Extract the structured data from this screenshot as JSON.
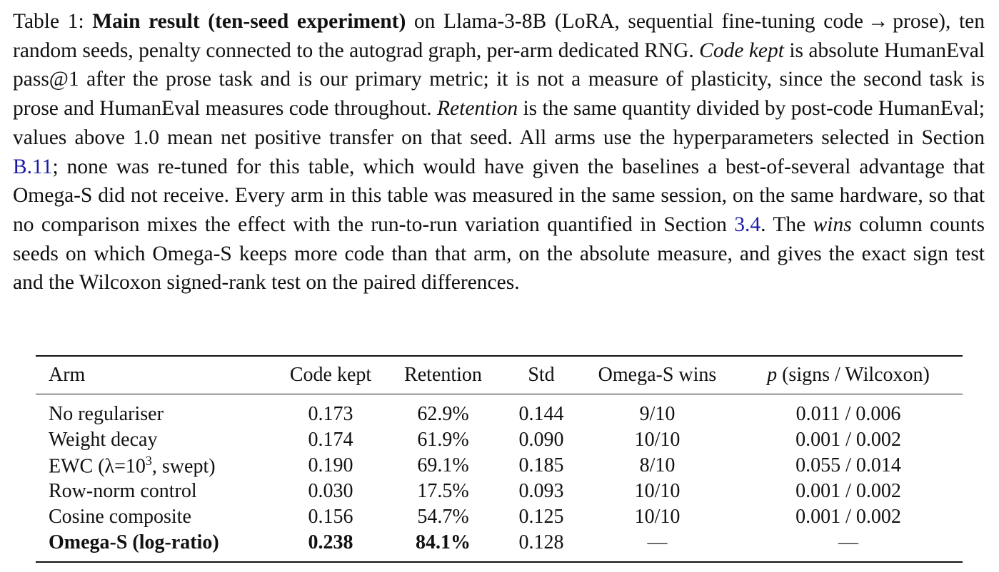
{
  "caption": {
    "label": "Table 1:",
    "title": "Main result (ten-seed experiment)",
    "t1": " on Llama-3-8B (LoRA, sequential fine-tuning code → prose), ten random seeds, penalty connected to the autograd graph, per-arm dedicated RNG. ",
    "i1": "Code kept",
    "t2": " is absolute HumanEval pass@1 after the prose task and is our primary metric; it is not a measure of plasticity, since the second task is prose and HumanEval measures code throughout. ",
    "i2": "Retention",
    "t3": " is the same quantity divided by post-code HumanEval; values above 1.0 mean net positive transfer on that seed. All arms use the hyperparameters selected in Section ",
    "ref1": "B.11",
    "t4": "; none was re-tuned for this table, which would have given the baselines a best-of-several advantage that Omega-S did not receive. Every arm in this table was measured in the same session, on the same hardware, so that no comparison mixes the effect with the run-to-run variation quantified in Section ",
    "ref2": "3.4",
    "t5": ". The ",
    "i3": "wins",
    "t6": " column counts seeds on which Omega-S keeps more code than that arm, on the absolute measure, and gives the exact sign test and the Wilcoxon signed-rank test on the paired differences."
  },
  "table": {
    "headers": {
      "arm": "Arm",
      "code": "Code kept",
      "ret": "Retention",
      "std": "Std",
      "wins": "Omega-S wins",
      "p_sym": "p",
      "p_rest": " (signs / Wilcoxon)"
    },
    "rows": [
      {
        "arm": "No regulariser",
        "code": "0.173",
        "ret": "62.9%",
        "std": "0.144",
        "wins": "9/10",
        "p": "0.011 / 0.006"
      },
      {
        "arm": "Weight decay",
        "code": "0.174",
        "ret": "61.9%",
        "std": "0.090",
        "wins": "10/10",
        "p": "0.001 / 0.002"
      },
      {
        "arm_pre": "EWC (λ=10",
        "arm_sup": "3",
        "arm_post": ", swept)",
        "code": "0.190",
        "ret": "69.1%",
        "std": "0.185",
        "wins": "8/10",
        "p": "0.055 / 0.014"
      },
      {
        "arm": "Row-norm control",
        "code": "0.030",
        "ret": "17.5%",
        "std": "0.093",
        "wins": "10/10",
        "p": "0.001 / 0.002"
      },
      {
        "arm": "Cosine composite",
        "code": "0.156",
        "ret": "54.7%",
        "std": "0.125",
        "wins": "10/10",
        "p": "0.001 / 0.002"
      },
      {
        "arm": "Omega-S (log-ratio)",
        "code": "0.238",
        "ret": "84.1%",
        "std": "0.128",
        "wins": "—",
        "p": "—"
      }
    ]
  }
}
